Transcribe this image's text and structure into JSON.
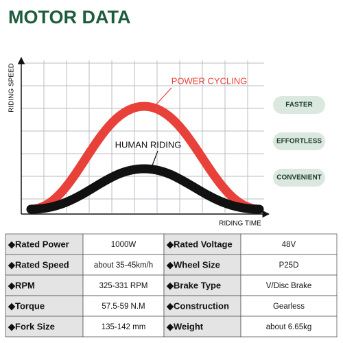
{
  "header": {
    "title": "MOTOR DATA"
  },
  "diagram": {
    "y_axis_label": "RIDING SPEED",
    "x_axis_label": "RIDING TIME",
    "curves": [
      {
        "label": "POWER CYCLING"
      },
      {
        "label": "HUMAN RIDING"
      }
    ],
    "badges": [
      "FASTER",
      "EFFORTLESS",
      "CONVENIENT"
    ]
  },
  "table": {
    "rows": [
      [
        "◆Rated Power",
        "1000W",
        "◆Rated Voltage",
        "48V"
      ],
      [
        "◆Rated Speed",
        "about 35-45km/h",
        "◆Wheel Size",
        "P25D"
      ],
      [
        "◆RPM",
        "325-331 RPM",
        "◆Brake Type",
        "V/Disc Brake"
      ],
      [
        "◆Torque",
        "57.5-59 N.M",
        "◆Construction",
        "Gearless"
      ],
      [
        "◆Fork Size",
        "135-142 mm",
        "◆Weight",
        "about 6.65kg"
      ]
    ]
  }
}
